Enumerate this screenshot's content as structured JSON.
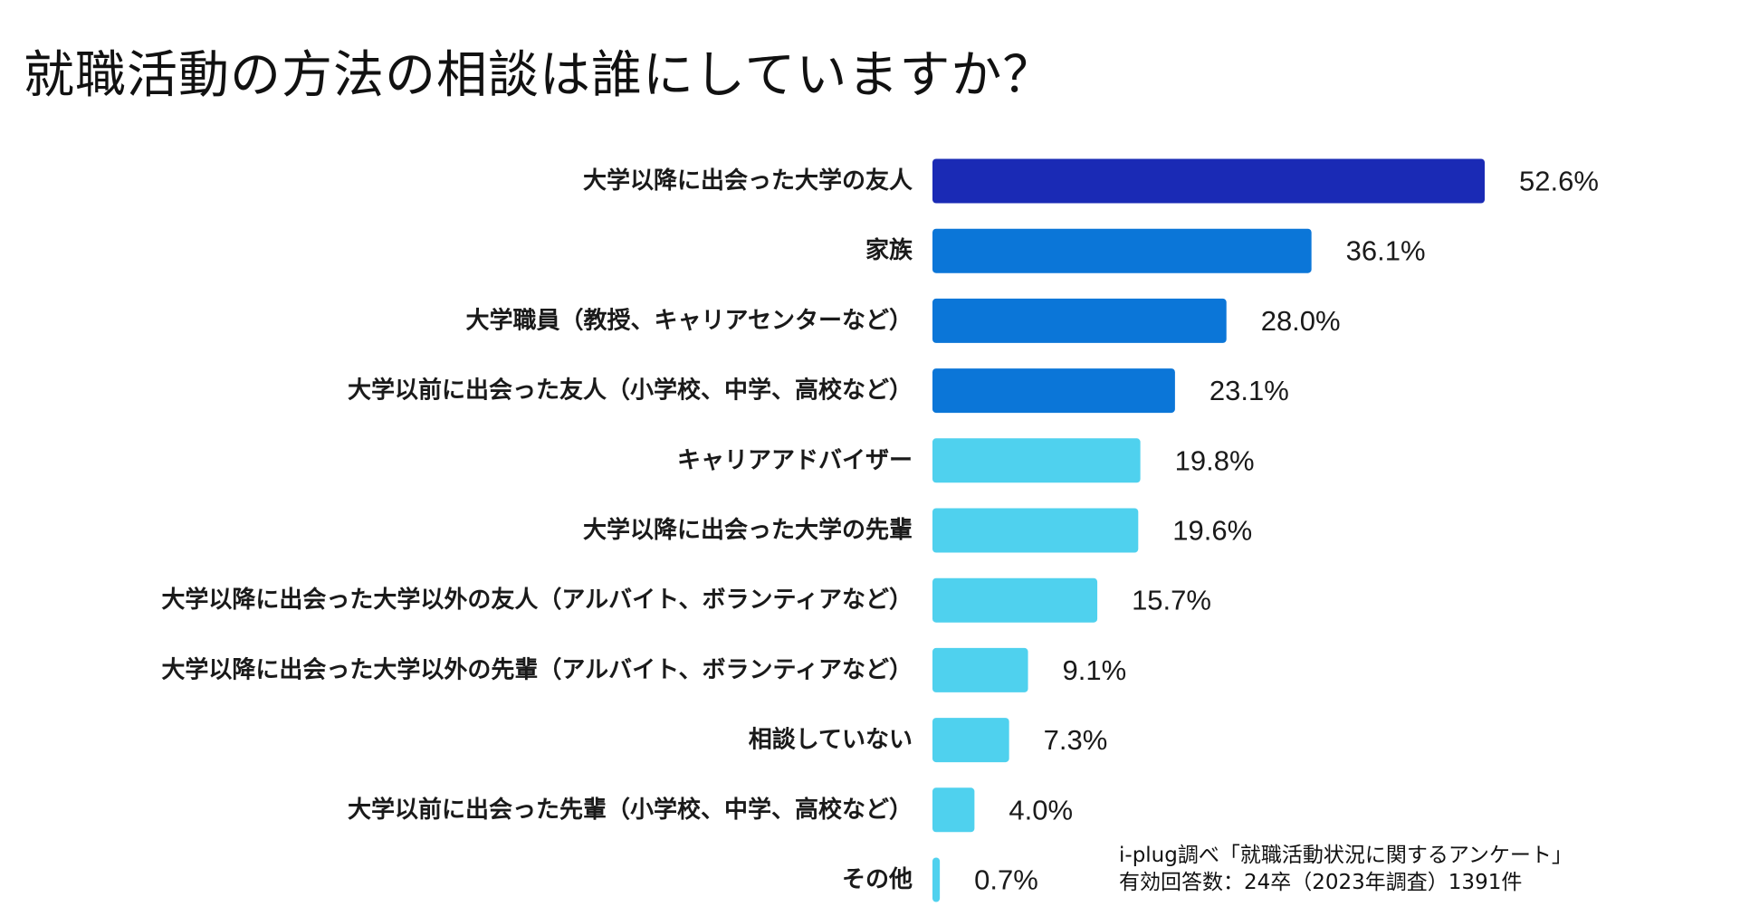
{
  "title": "就職活動の方法の相談は誰にしていますか？",
  "chart_data": {
    "type": "bar",
    "orientation": "horizontal",
    "title": "就職活動の方法の相談は誰にしていますか？",
    "categories": [
      "大学以降に出会った大学の友人",
      "家族",
      "大学職員（教授、キャリアセンターなど）",
      "大学以前に出会った友人（小学校、中学、高校など）",
      "キャリアアドバイザー",
      "大学以降に出会った大学の先輩",
      "大学以降に出会った大学以外の友人（アルバイト、ボランティアなど）",
      "大学以降に出会った大学以外の先輩（アルバイト、ボランティアなど）",
      "相談していない",
      "大学以前に出会った先輩（小学校、中学、高校など）",
      "その他"
    ],
    "values": [
      52.6,
      36.1,
      28.0,
      23.1,
      19.8,
      19.6,
      15.7,
      9.1,
      7.3,
      4.0,
      0.7
    ],
    "value_labels": [
      "52.6%",
      "36.1%",
      "28.0%",
      "23.1%",
      "19.8%",
      "19.6%",
      "15.7%",
      "9.1%",
      "7.3%",
      "4.0%",
      "0.7%"
    ],
    "unit": "%",
    "xlim": [
      0,
      52.6
    ],
    "colors": {
      "top": "#1a2ab5",
      "high": "#0b76d8",
      "low": "#4fd1ee"
    },
    "color_groups": [
      "top",
      "high",
      "high",
      "high",
      "low",
      "low",
      "low",
      "low",
      "low",
      "low",
      "low"
    ],
    "xlabel": "",
    "ylabel": "",
    "grid": false,
    "legend": "none"
  },
  "source": {
    "line1": "i-plug調べ「就職活動状況に関するアンケート」",
    "line2": "有効回答数：24卒（2023年調査）1391件"
  }
}
